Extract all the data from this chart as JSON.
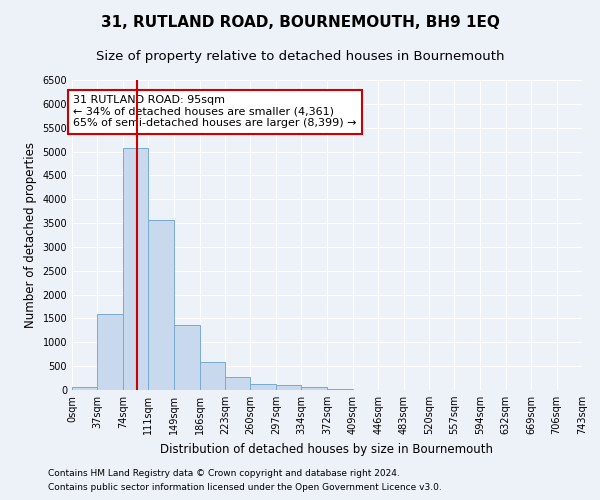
{
  "title": "31, RUTLAND ROAD, BOURNEMOUTH, BH9 1EQ",
  "subtitle": "Size of property relative to detached houses in Bournemouth",
  "xlabel": "Distribution of detached houses by size in Bournemouth",
  "ylabel": "Number of detached properties",
  "footnote1": "Contains HM Land Registry data © Crown copyright and database right 2024.",
  "footnote2": "Contains public sector information licensed under the Open Government Licence v3.0.",
  "annotation_line1": "31 RUTLAND ROAD: 95sqm",
  "annotation_line2": "← 34% of detached houses are smaller (4,361)",
  "annotation_line3": "65% of semi-detached houses are larger (8,399) →",
  "bar_color": "#c9d9ed",
  "bar_edge_color": "#7aaad0",
  "vline_color": "#cc0000",
  "vline_x": 95,
  "bin_edges": [
    0,
    37,
    74,
    111,
    149,
    186,
    223,
    260,
    297,
    334,
    372,
    409,
    446,
    483,
    520,
    557,
    594,
    632,
    669,
    706,
    743
  ],
  "bin_counts": [
    60,
    1600,
    5080,
    3570,
    1370,
    590,
    280,
    120,
    100,
    70,
    30,
    10,
    5,
    3,
    2,
    1,
    1,
    0,
    0,
    0
  ],
  "ylim": [
    0,
    6500
  ],
  "yticks": [
    0,
    500,
    1000,
    1500,
    2000,
    2500,
    3000,
    3500,
    4000,
    4500,
    5000,
    5500,
    6000,
    6500
  ],
  "bg_color": "#edf1f8",
  "plot_bg_color": "#edf1f8",
  "grid_color": "#ffffff",
  "title_fontsize": 11,
  "subtitle_fontsize": 9.5,
  "annot_fontsize": 8,
  "ylabel_fontsize": 8.5,
  "xlabel_fontsize": 8.5,
  "footnote_fontsize": 6.5,
  "tick_fontsize": 7
}
